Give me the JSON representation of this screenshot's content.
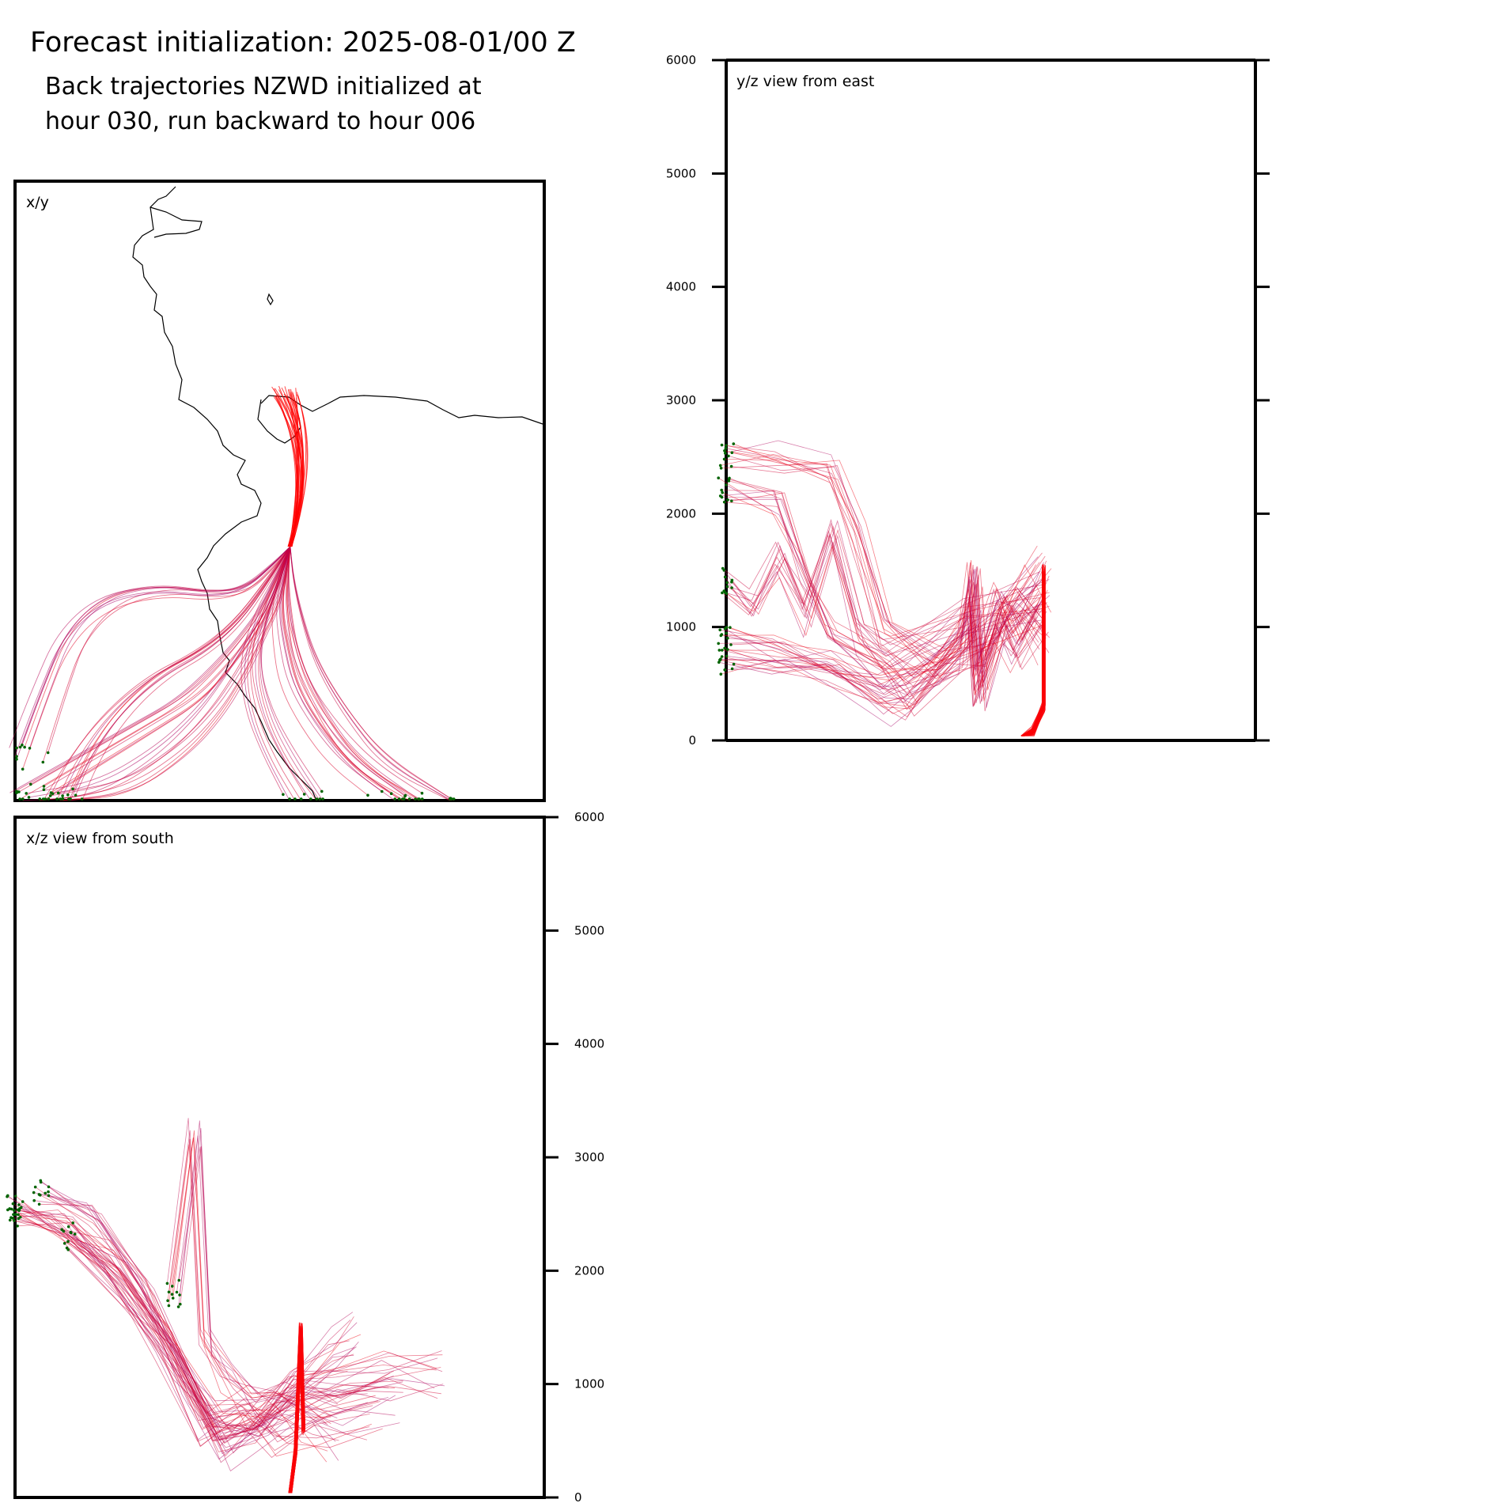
{
  "figure": {
    "title": "Forecast initialization: 2025-08-01/00 Z",
    "subtitle_line1": "Back trajectories NZWD initialized at",
    "subtitle_line2": "hour 030, run backward to hour 006"
  },
  "colors": {
    "trajectory_recent": "#ff0000",
    "trajectory_old": "#a0006e",
    "endpoint_marker": "#006400",
    "coastline": "#000000",
    "frame": "#000000"
  },
  "chart_data": [
    {
      "type": "line",
      "panel": "xy",
      "label": "x/y",
      "description_of_marks": "horizontal plan view of back trajectories with coastline",
      "source_point": {
        "name": "NZWD"
      },
      "series": [
        {
          "values": [
            [
              0.52,
              0.59
            ],
            [
              0.51,
              0.62
            ],
            [
              0.49,
              0.68
            ],
            [
              0.45,
              0.74
            ],
            [
              0.41,
              0.8
            ],
            [
              0.36,
              0.86
            ],
            [
              0.29,
              0.92
            ],
            [
              0.18,
              0.98
            ],
            [
              0.05,
              1.0
            ]
          ]
        },
        {
          "values": [
            [
              0.52,
              0.59
            ],
            [
              0.5,
              0.63
            ],
            [
              0.47,
              0.69
            ],
            [
              0.43,
              0.74
            ],
            [
              0.38,
              0.79
            ],
            [
              0.32,
              0.84
            ],
            [
              0.24,
              0.88
            ],
            [
              0.14,
              0.93
            ],
            [
              0.02,
              0.99
            ]
          ]
        },
        {
          "values": [
            [
              0.52,
              0.59
            ],
            [
              0.51,
              0.63
            ],
            [
              0.5,
              0.69
            ],
            [
              0.51,
              0.75
            ],
            [
              0.53,
              0.82
            ],
            [
              0.58,
              0.89
            ],
            [
              0.64,
              0.95
            ],
            [
              0.72,
              1.0
            ]
          ]
        },
        {
          "values": [
            [
              0.52,
              0.59
            ],
            [
              0.52,
              0.64
            ],
            [
              0.53,
              0.7
            ],
            [
              0.55,
              0.77
            ],
            [
              0.6,
              0.85
            ],
            [
              0.67,
              0.93
            ],
            [
              0.79,
              1.0
            ]
          ]
        },
        {
          "values": [
            [
              0.52,
              0.59
            ],
            [
              0.5,
              0.64
            ],
            [
              0.47,
              0.7
            ],
            [
              0.45,
              0.78
            ],
            [
              0.47,
              0.86
            ],
            [
              0.51,
              0.93
            ],
            [
              0.56,
              1.0
            ]
          ]
        },
        {
          "values": [
            [
              0.52,
              0.59
            ],
            [
              0.49,
              0.62
            ],
            [
              0.44,
              0.66
            ],
            [
              0.38,
              0.67
            ],
            [
              0.28,
              0.66
            ],
            [
              0.18,
              0.68
            ],
            [
              0.11,
              0.74
            ],
            [
              0.07,
              0.83
            ],
            [
              0.03,
              0.93
            ]
          ]
        },
        {
          "values": [
            [
              0.52,
              0.59
            ],
            [
              0.48,
              0.64
            ],
            [
              0.42,
              0.71
            ],
            [
              0.35,
              0.76
            ],
            [
              0.26,
              0.8
            ],
            [
              0.18,
              0.86
            ],
            [
              0.12,
              0.93
            ],
            [
              0.08,
              1.0
            ]
          ]
        }
      ]
    },
    {
      "type": "line",
      "panel": "yz",
      "label": "y/z view from east",
      "ylim": [
        0,
        6000
      ],
      "yticks": [
        0,
        1000,
        2000,
        3000,
        4000,
        5000,
        6000
      ],
      "series": [
        {
          "values": [
            [
              0.0,
              2500
            ],
            [
              0.1,
              2500
            ],
            [
              0.2,
              2400
            ],
            [
              0.25,
              1800
            ],
            [
              0.3,
              1000
            ],
            [
              0.4,
              700
            ],
            [
              0.5,
              900
            ],
            [
              0.55,
              1300
            ],
            [
              0.6,
              1000
            ]
          ]
        },
        {
          "values": [
            [
              0.0,
              2200
            ],
            [
              0.1,
              2100
            ],
            [
              0.15,
              1500
            ],
            [
              0.2,
              900
            ],
            [
              0.3,
              600
            ],
            [
              0.35,
              400
            ],
            [
              0.45,
              800
            ],
            [
              0.47,
              1500
            ],
            [
              0.48,
              600
            ],
            [
              0.52,
              1200
            ],
            [
              0.55,
              900
            ],
            [
              0.6,
              1300
            ]
          ]
        },
        {
          "values": [
            [
              0.0,
              900
            ],
            [
              0.1,
              800
            ],
            [
              0.2,
              700
            ],
            [
              0.3,
              500
            ],
            [
              0.4,
              700
            ],
            [
              0.47,
              1100
            ],
            [
              0.48,
              400
            ],
            [
              0.52,
              1100
            ],
            [
              0.55,
              900
            ],
            [
              0.6,
              1200
            ]
          ]
        },
        {
          "values": [
            [
              0.0,
              700
            ],
            [
              0.1,
              650
            ],
            [
              0.2,
              600
            ],
            [
              0.3,
              300
            ],
            [
              0.35,
              300
            ],
            [
              0.45,
              900
            ],
            [
              0.47,
              1300
            ],
            [
              0.48,
              500
            ],
            [
              0.52,
              1000
            ],
            [
              0.6,
              1400
            ]
          ]
        },
        {
          "values": [
            [
              0.0,
              1400
            ],
            [
              0.05,
              1200
            ],
            [
              0.1,
              1600
            ],
            [
              0.15,
              1100
            ],
            [
              0.2,
              1800
            ],
            [
              0.25,
              900
            ],
            [
              0.3,
              700
            ],
            [
              0.45,
              1000
            ],
            [
              0.6,
              1200
            ]
          ]
        },
        {
          "values": [
            [
              0.56,
              0
            ],
            [
              0.58,
              80
            ],
            [
              0.6,
              300
            ],
            [
              0.6,
              1500
            ]
          ]
        }
      ]
    },
    {
      "type": "line",
      "panel": "xz",
      "label": "x/z view from south",
      "ylim": [
        0,
        6000
      ],
      "yticks": [
        0,
        1000,
        2000,
        3000,
        4000,
        5000,
        6000
      ],
      "series": [
        {
          "values": [
            [
              0.0,
              2500
            ],
            [
              0.1,
              2400
            ],
            [
              0.2,
              2000
            ],
            [
              0.3,
              1300
            ],
            [
              0.38,
              500
            ],
            [
              0.45,
              600
            ],
            [
              0.52,
              900
            ],
            [
              0.6,
              1000
            ],
            [
              0.7,
              1100
            ],
            [
              0.8,
              1100
            ]
          ]
        },
        {
          "values": [
            [
              0.05,
              2700
            ],
            [
              0.15,
              2500
            ],
            [
              0.25,
              1800
            ],
            [
              0.33,
              1000
            ],
            [
              0.4,
              400
            ],
            [
              0.48,
              700
            ],
            [
              0.54,
              900
            ],
            [
              0.62,
              800
            ],
            [
              0.72,
              900
            ]
          ]
        },
        {
          "values": [
            [
              0.0,
              2550
            ],
            [
              0.08,
              2400
            ],
            [
              0.18,
              2100
            ],
            [
              0.28,
              1400
            ],
            [
              0.36,
              600
            ],
            [
              0.44,
              800
            ],
            [
              0.5,
              600
            ],
            [
              0.58,
              700
            ],
            [
              0.68,
              800
            ]
          ]
        },
        {
          "values": [
            [
              0.1,
              2300
            ],
            [
              0.2,
              1800
            ],
            [
              0.3,
              1200
            ],
            [
              0.38,
              700
            ],
            [
              0.46,
              700
            ],
            [
              0.52,
              1000
            ],
            [
              0.6,
              1300
            ],
            [
              0.64,
              1400
            ]
          ]
        },
        {
          "values": [
            [
              0.3,
              1800
            ],
            [
              0.34,
              3200
            ],
            [
              0.36,
              1400
            ],
            [
              0.4,
              1100
            ],
            [
              0.45,
              800
            ],
            [
              0.5,
              900
            ],
            [
              0.55,
              700
            ],
            [
              0.6,
              600
            ]
          ]
        },
        {
          "values": [
            [
              0.52,
              0
            ],
            [
              0.53,
              400
            ],
            [
              0.54,
              1500
            ],
            [
              0.545,
              600
            ]
          ]
        }
      ]
    }
  ]
}
